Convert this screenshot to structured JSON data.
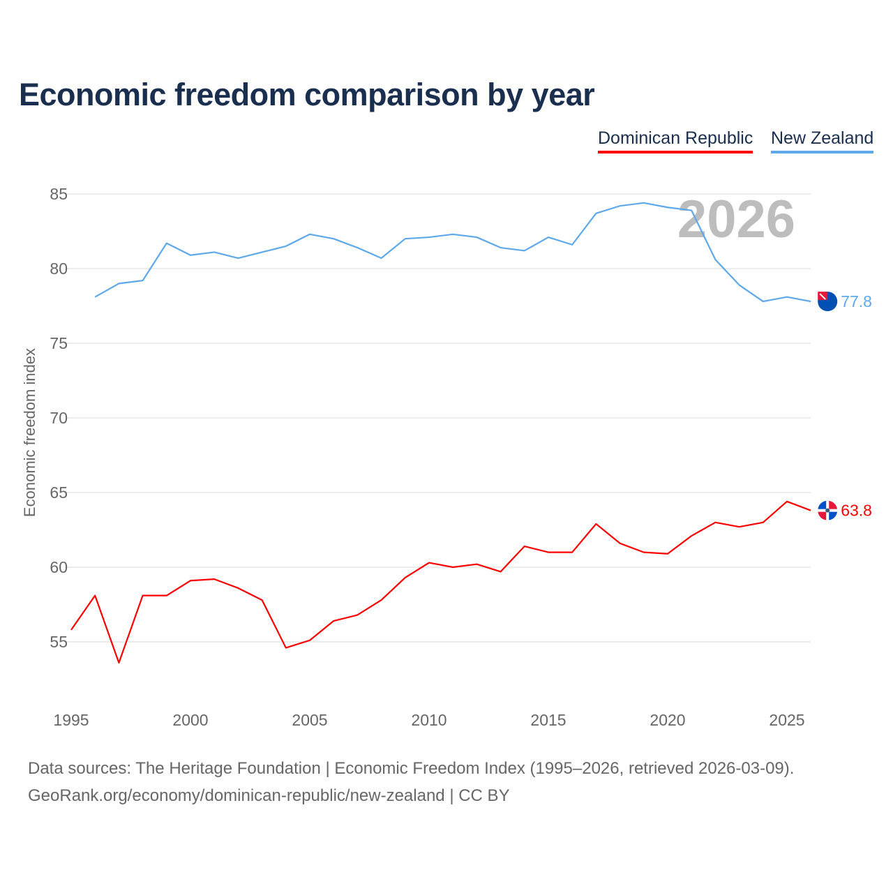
{
  "chart_data": {
    "type": "line",
    "title": "Economic freedom comparison by year",
    "xlabel": "",
    "ylabel": "Economic freedom index",
    "xlim": [
      1995,
      2026
    ],
    "ylim": [
      51.5,
      86.5
    ],
    "yticks": [
      55,
      60,
      65,
      70,
      75,
      80,
      85
    ],
    "xticks": [
      1995,
      2000,
      2005,
      2010,
      2015,
      2020,
      2025
    ],
    "grid": true,
    "legend_position": "top-right",
    "watermark_year": "2026",
    "series": [
      {
        "name": "Dominican Republic",
        "color": "#ff0000",
        "end_label": "63.8",
        "flag": "dominican-republic-flag",
        "x": [
          1995,
          1996,
          1997,
          1998,
          1999,
          2000,
          2001,
          2002,
          2003,
          2004,
          2005,
          2006,
          2007,
          2008,
          2009,
          2010,
          2011,
          2012,
          2013,
          2014,
          2015,
          2016,
          2017,
          2018,
          2019,
          2020,
          2021,
          2022,
          2023,
          2024,
          2025,
          2026
        ],
        "values": [
          55.8,
          58.1,
          53.6,
          58.1,
          58.1,
          59.1,
          59.2,
          58.6,
          57.8,
          54.6,
          55.1,
          56.4,
          56.8,
          57.8,
          59.3,
          60.3,
          60.0,
          60.2,
          59.7,
          61.4,
          61.0,
          61.0,
          62.9,
          61.6,
          61.0,
          60.9,
          62.1,
          63.0,
          62.7,
          63.0,
          64.4,
          63.8
        ]
      },
      {
        "name": "New Zealand",
        "color": "#5ea8ea",
        "end_label": "77.8",
        "flag": "new-zealand-flag",
        "x": [
          1996,
          1997,
          1998,
          1999,
          2000,
          2001,
          2002,
          2003,
          2004,
          2005,
          2006,
          2007,
          2008,
          2009,
          2010,
          2011,
          2012,
          2013,
          2014,
          2015,
          2016,
          2017,
          2018,
          2019,
          2020,
          2021,
          2022,
          2023,
          2024,
          2025,
          2026
        ],
        "values": [
          78.1,
          79.0,
          79.2,
          81.7,
          80.9,
          81.1,
          80.7,
          81.1,
          81.5,
          82.3,
          82.0,
          81.4,
          80.7,
          82.0,
          82.1,
          82.3,
          82.1,
          81.4,
          81.2,
          82.1,
          81.6,
          83.7,
          84.2,
          84.4,
          84.1,
          83.9,
          80.6,
          78.9,
          77.8,
          78.1,
          77.8
        ]
      }
    ]
  },
  "footer": {
    "line1": "Data sources: The Heritage Foundation | Economic Freedom Index (1995–2026, retrieved 2026-03-09).",
    "line2": "GeoRank.org/economy/dominican-republic/new-zealand | CC BY"
  }
}
